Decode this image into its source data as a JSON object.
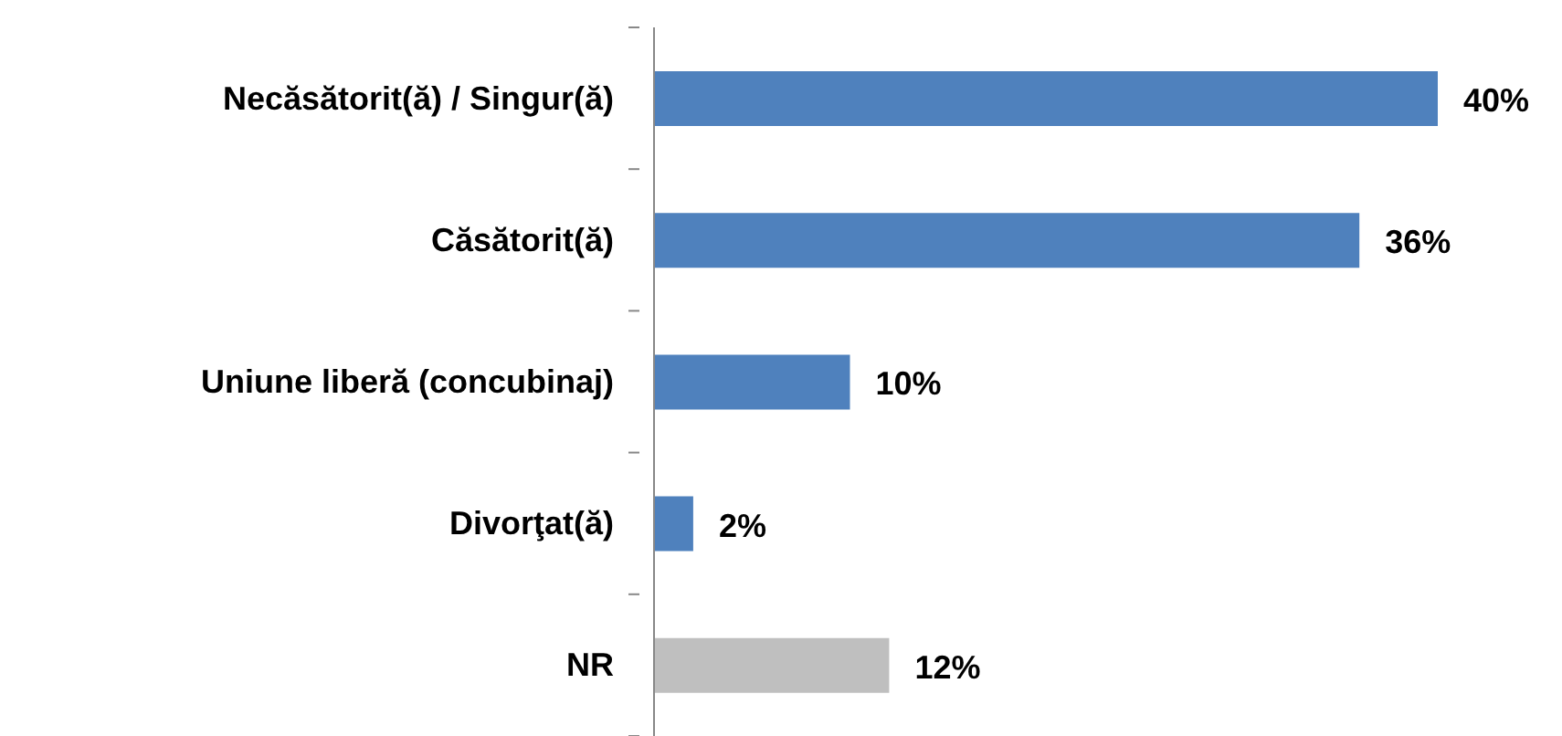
{
  "chart_data": {
    "type": "bar",
    "orientation": "horizontal",
    "categories": [
      "Necăsătorit(ă) / Singur(ă)",
      "Căsătorit(ă)",
      "Uniune liberă (concubinaj)",
      "Divorţat(ă)",
      "NR"
    ],
    "values": [
      40,
      36,
      10,
      2,
      12
    ],
    "colors": [
      "#4f81bd",
      "#4f81bd",
      "#4f81bd",
      "#4f81bd",
      "#bfbfbf"
    ],
    "value_labels": [
      "40%",
      "36%",
      "10%",
      "2%",
      "12%"
    ]
  }
}
